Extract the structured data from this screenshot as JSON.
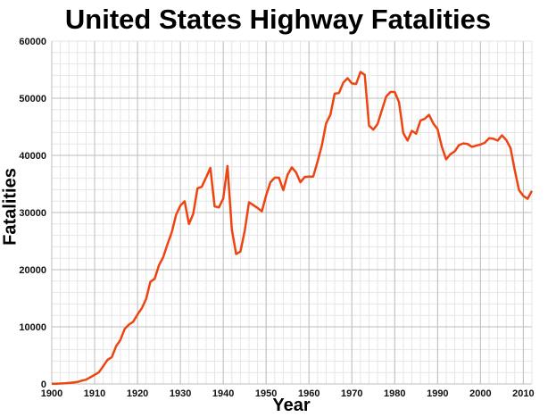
{
  "chart_data": {
    "type": "line",
    "title": "United States Highway Fatalities",
    "xlabel": "Year",
    "ylabel": "Fatalities",
    "xlim": [
      1900,
      2012
    ],
    "ylim": [
      0,
      60000
    ],
    "grid": true,
    "line_color": "#ee4411",
    "x_ticks": [
      1900,
      1910,
      1920,
      1930,
      1940,
      1950,
      1960,
      1970,
      1980,
      1990,
      2000,
      2010
    ],
    "y_ticks": [
      0,
      10000,
      20000,
      30000,
      40000,
      50000,
      60000
    ],
    "x": [
      1900,
      1901,
      1902,
      1903,
      1904,
      1905,
      1906,
      1907,
      1908,
      1909,
      1910,
      1911,
      1912,
      1913,
      1914,
      1915,
      1916,
      1917,
      1918,
      1919,
      1920,
      1921,
      1922,
      1923,
      1924,
      1925,
      1926,
      1927,
      1928,
      1929,
      1930,
      1931,
      1932,
      1933,
      1934,
      1935,
      1936,
      1937,
      1938,
      1939,
      1940,
      1941,
      1942,
      1943,
      1944,
      1945,
      1946,
      1947,
      1948,
      1949,
      1950,
      1951,
      1952,
      1953,
      1954,
      1955,
      1956,
      1957,
      1958,
      1959,
      1960,
      1961,
      1962,
      1963,
      1964,
      1965,
      1966,
      1967,
      1968,
      1969,
      1970,
      1971,
      1972,
      1973,
      1974,
      1975,
      1976,
      1977,
      1978,
      1979,
      1980,
      1981,
      1982,
      1983,
      1984,
      1985,
      1986,
      1987,
      1988,
      1989,
      1990,
      1991,
      1992,
      1993,
      1994,
      1995,
      1996,
      1997,
      1998,
      1999,
      2000,
      2001,
      2002,
      2003,
      2004,
      2005,
      2006,
      2007,
      2008,
      2009,
      2010,
      2011,
      2012
    ],
    "y": [
      36,
      54,
      79,
      117,
      172,
      252,
      338,
      581,
      751,
      1174,
      1599,
      2043,
      3100,
      4200,
      4700,
      6600,
      7700,
      9630,
      10390,
      10896,
      12155,
      13253,
      14859,
      17870,
      18400,
      20771,
      22194,
      24470,
      26557,
      29592,
      31204,
      31963,
      27979,
      29746,
      34240,
      34494,
      36126,
      37819,
      31083,
      30895,
      32430,
      38142,
      27007,
      22727,
      23165,
      26785,
      31800,
      31300,
      30800,
      30200,
      33000,
      35300,
      36100,
      36100,
      33900,
      36600,
      37900,
      37000,
      35300,
      36200,
      36300,
      36300,
      38900,
      41700,
      45600,
      47100,
      50800,
      50900,
      52700,
      53500,
      52600,
      52500,
      54600,
      54100,
      45200,
      44500,
      45500,
      47900,
      50300,
      51100,
      51100,
      49300,
      43900,
      42600,
      44300,
      43800,
      46100,
      46400,
      47100,
      45600,
      44600,
      41500,
      39300,
      40200,
      40700,
      41800,
      42100,
      42000,
      41500,
      41700,
      41900,
      42200,
      43000,
      42900,
      42600,
      43500,
      42700,
      41300,
      37400,
      33900,
      32900,
      32400,
      33800
    ]
  }
}
